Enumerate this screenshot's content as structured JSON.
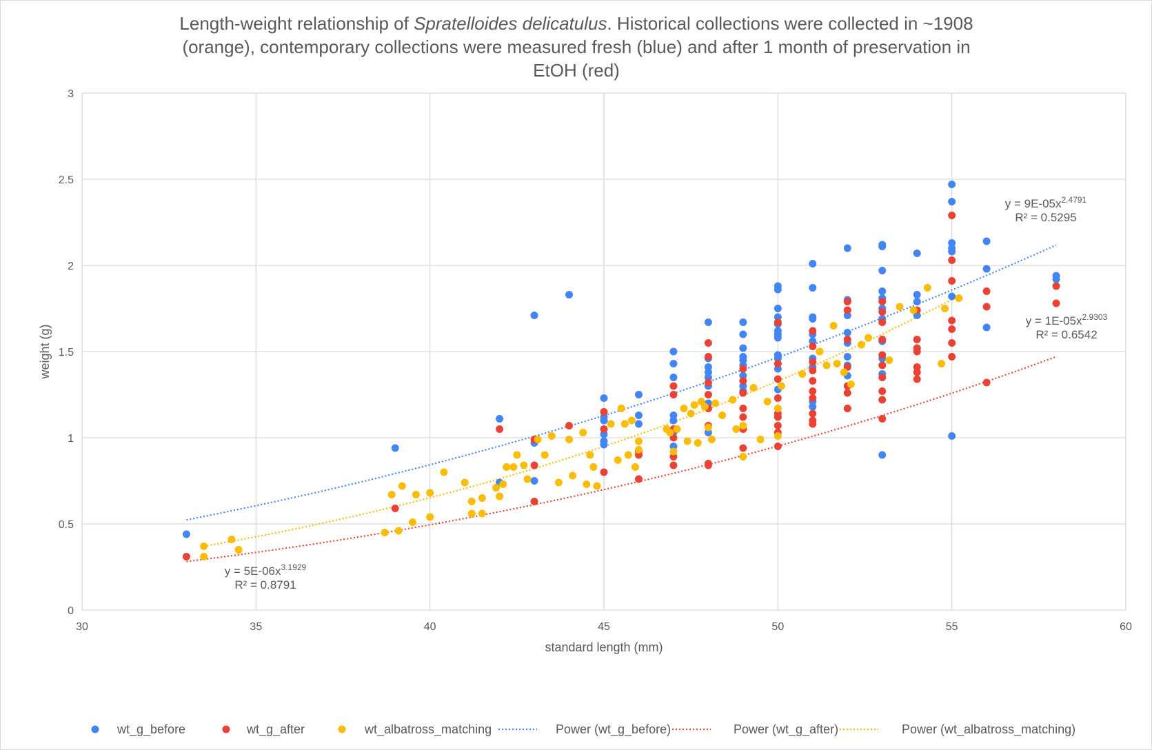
{
  "chart_data": {
    "type": "scatter",
    "title": {
      "part1": "Length-weight relationship of ",
      "species": "Spratelloides delicatulus",
      "part2": ". Historical collections were collected in ~1908",
      "line2": "(orange), contemporary collections were measured fresh (blue) and after 1 month of preservation in",
      "line3": "EtOH (red)"
    },
    "xlabel": "standard length (mm)",
    "ylabel": "weight (g)",
    "xlim": [
      30,
      60
    ],
    "ylim": [
      0,
      3
    ],
    "xticks": [
      30,
      35,
      40,
      45,
      50,
      55,
      60
    ],
    "yticks": [
      0,
      0.5,
      1,
      1.5,
      2,
      2.5,
      3
    ],
    "grid": true,
    "legend_position": "bottom",
    "series": [
      {
        "name": "wt_g_before",
        "color": "#4285f4",
        "x": [
          33,
          39,
          42,
          42,
          43,
          43,
          43,
          44,
          45,
          45,
          45,
          45,
          45,
          45,
          46,
          46,
          46,
          47,
          47,
          47,
          47,
          47,
          47,
          47,
          48,
          48,
          48,
          48,
          48,
          48,
          48,
          48,
          49,
          49,
          49,
          49,
          49,
          49,
          49,
          49,
          49,
          50,
          50,
          50,
          50,
          50,
          50,
          50,
          50,
          50,
          50,
          50,
          50,
          51,
          51,
          51,
          51,
          51,
          51,
          51,
          51,
          51,
          51,
          52,
          52,
          52,
          52,
          52,
          52,
          52,
          52,
          52,
          53,
          53,
          53,
          53,
          53,
          53,
          53,
          53,
          53,
          53,
          53,
          54,
          54,
          54,
          54,
          55,
          55,
          55,
          55,
          55,
          55,
          55,
          56,
          56,
          56,
          58,
          58
        ],
        "y": [
          0.44,
          0.94,
          1.11,
          0.74,
          1.71,
          0.97,
          0.75,
          1.83,
          1.23,
          1.12,
          1.02,
          0.98,
          0.96,
          1.1,
          1.25,
          1.13,
          1.08,
          1.5,
          1.43,
          1.35,
          1.13,
          1.1,
          1.03,
          0.95,
          1.67,
          1.46,
          1.41,
          1.38,
          1.35,
          1.3,
          1.2,
          1.03,
          1.67,
          1.6,
          1.52,
          1.47,
          1.45,
          1.42,
          1.36,
          1.3,
          1.27,
          1.88,
          1.86,
          1.75,
          1.7,
          1.66,
          1.62,
          1.6,
          1.58,
          1.48,
          1.46,
          1.4,
          1.28,
          2.01,
          1.87,
          1.7,
          1.69,
          1.6,
          1.56,
          1.46,
          1.41,
          1.21,
          1.18,
          2.1,
          1.8,
          1.71,
          1.61,
          1.55,
          1.47,
          1.42,
          1.36,
          1.17,
          2.12,
          2.11,
          1.97,
          1.85,
          1.81,
          1.75,
          1.69,
          1.56,
          1.46,
          1.37,
          0.9,
          2.07,
          1.83,
          1.79,
          1.71,
          2.47,
          2.37,
          2.13,
          2.1,
          2.08,
          1.82,
          1.01,
          2.14,
          1.98,
          1.64,
          1.94,
          1.92
        ]
      },
      {
        "name": "wt_g_after",
        "color": "#ea4335",
        "x": [
          33,
          39,
          42,
          43,
          43,
          43,
          44,
          45,
          45,
          45,
          46,
          46,
          46,
          47,
          47,
          47,
          47,
          47,
          47,
          48,
          48,
          48,
          48,
          48,
          48,
          48,
          48,
          49,
          49,
          49,
          49,
          49,
          49,
          49,
          50,
          50,
          50,
          50,
          50,
          50,
          50,
          50,
          50,
          51,
          51,
          51,
          51,
          51,
          51,
          51,
          51,
          51,
          51,
          52,
          52,
          52,
          52,
          52,
          52,
          52,
          53,
          53,
          53,
          53,
          53,
          53,
          53,
          53,
          53,
          53,
          54,
          54,
          54,
          54,
          54,
          54,
          54,
          55,
          55,
          55,
          55,
          55,
          55,
          55,
          56,
          56,
          56,
          58,
          58
        ],
        "y": [
          0.31,
          0.59,
          1.05,
          0.99,
          0.84,
          0.63,
          1.07,
          1.15,
          1.05,
          0.8,
          0.92,
          0.9,
          0.76,
          1.3,
          1.25,
          1.05,
          1.0,
          0.89,
          0.84,
          1.55,
          1.47,
          1.32,
          1.25,
          1.17,
          1.07,
          0.85,
          0.84,
          1.4,
          1.33,
          1.26,
          1.17,
          1.12,
          1.05,
          0.94,
          1.67,
          1.43,
          1.34,
          1.23,
          1.14,
          1.12,
          1.07,
          1.03,
          0.95,
          1.62,
          1.53,
          1.44,
          1.39,
          1.27,
          1.23,
          1.14,
          1.1,
          1.08,
          1.33,
          1.79,
          1.74,
          1.57,
          1.41,
          1.3,
          1.26,
          1.17,
          1.79,
          1.73,
          1.67,
          1.57,
          1.42,
          1.35,
          1.27,
          1.22,
          1.11,
          1.48,
          1.74,
          1.57,
          1.5,
          1.41,
          1.38,
          1.34,
          1.52,
          2.29,
          2.03,
          1.91,
          1.68,
          1.63,
          1.55,
          1.47,
          1.85,
          1.76,
          1.32,
          1.88,
          1.78
        ]
      },
      {
        "name": "wt_albatross_matching",
        "color": "#fbbc04",
        "x": [
          33.5,
          33.5,
          34.3,
          34.5,
          38.7,
          38.9,
          39.1,
          39.2,
          39.5,
          39.6,
          40.0,
          40.0,
          40.4,
          41.0,
          41.2,
          41.2,
          41.5,
          41.5,
          41.9,
          42.0,
          42.1,
          42.2,
          42.4,
          42.5,
          42.7,
          42.8,
          43.1,
          43.3,
          43.5,
          43.7,
          44.0,
          44.1,
          44.4,
          44.5,
          44.6,
          44.7,
          44.8,
          45.2,
          45.4,
          45.5,
          45.6,
          45.7,
          45.8,
          45.9,
          46.0,
          46.0,
          46.8,
          46.9,
          47.0,
          47.1,
          47.3,
          47.4,
          47.5,
          47.6,
          47.7,
          47.8,
          47.9,
          48.0,
          48.1,
          48.2,
          48.4,
          48.7,
          48.8,
          49.0,
          49.0,
          49.3,
          49.5,
          49.7,
          50.0,
          50.0,
          50.1,
          50.7,
          51.2,
          51.4,
          51.6,
          51.7,
          51.9,
          52.1,
          52.4,
          52.6,
          53.2,
          53.5,
          53.9,
          54.3,
          54.7,
          54.8,
          55.2
        ],
        "y": [
          0.37,
          0.31,
          0.41,
          0.35,
          0.45,
          0.67,
          0.46,
          0.72,
          0.51,
          0.67,
          0.68,
          0.54,
          0.8,
          0.74,
          0.63,
          0.56,
          0.65,
          0.56,
          0.71,
          0.66,
          0.73,
          0.83,
          0.83,
          0.9,
          0.84,
          0.76,
          0.99,
          0.9,
          1.01,
          0.74,
          0.99,
          0.78,
          1.03,
          0.73,
          0.9,
          0.83,
          0.72,
          1.08,
          0.87,
          1.17,
          1.08,
          0.9,
          1.1,
          0.83,
          0.98,
          0.93,
          1.05,
          1.03,
          0.92,
          1.05,
          1.17,
          0.98,
          1.14,
          1.19,
          0.97,
          1.21,
          1.18,
          1.06,
          0.99,
          1.2,
          1.13,
          1.22,
          1.05,
          1.07,
          0.89,
          1.29,
          0.99,
          1.21,
          1.17,
          1.01,
          1.3,
          1.37,
          1.5,
          1.42,
          1.65,
          1.43,
          1.38,
          1.31,
          1.54,
          1.58,
          1.45,
          1.76,
          1.74,
          1.87,
          1.43,
          1.75,
          1.81
        ]
      }
    ],
    "trendlines": [
      {
        "name": "Power (wt_g_before)",
        "color": "#4285f4",
        "coefficient": 9e-05,
        "exponent": 2.4791,
        "x_range": [
          33,
          58
        ],
        "equation_base": "y = 9E-05x",
        "equation_exp": "2.4791",
        "r2": "R² = 0.5295"
      },
      {
        "name": "Power (wt_g_after)",
        "color": "#ea4335",
        "coefficient": 1e-05,
        "exponent": 2.9303,
        "x_range": [
          33,
          58
        ],
        "equation_base": "y = 1E-05x",
        "equation_exp": "2.9303",
        "r2": "R² = 0.6542"
      },
      {
        "name": "Power (wt_albatross_matching)",
        "color": "#fbbc04",
        "coefficient": 5e-06,
        "exponent": 3.1929,
        "x_range": [
          33.5,
          55.2
        ],
        "equation_base": "y = 5E-06x",
        "equation_exp": "3.1929",
        "r2": "R² = 0.8791"
      }
    ],
    "legend": [
      "wt_g_before",
      "wt_g_after",
      "wt_albatross_matching",
      "Power (wt_g_before)",
      "Power (wt_g_after)",
      "Power (wt_albatross_matching)"
    ]
  }
}
